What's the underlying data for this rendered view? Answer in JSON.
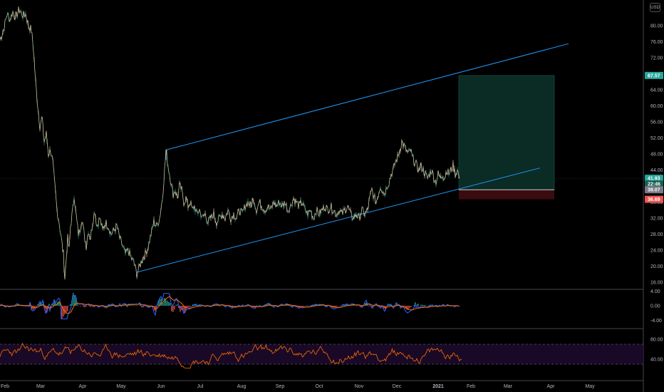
{
  "currency": "USD",
  "price_pane": {
    "y_ticks": [
      "80.00",
      "76.00",
      "72.00",
      "68.00",
      "64.00",
      "60.00",
      "56.00",
      "52.00",
      "48.00",
      "44.00",
      "36.00",
      "32.00",
      "28.00",
      "24.00",
      "20.00",
      "16.00"
    ],
    "y_min": 14,
    "y_max": 84,
    "series": [
      [
        0,
        76.5
      ],
      [
        5,
        79
      ],
      [
        10,
        83
      ],
      [
        14,
        81.5
      ],
      [
        18,
        83.5
      ],
      [
        22,
        82
      ],
      [
        27,
        84
      ],
      [
        32,
        82.5
      ],
      [
        36,
        83
      ],
      [
        40,
        80
      ],
      [
        44,
        79
      ],
      [
        47,
        74
      ],
      [
        50,
        66
      ],
      [
        53,
        60
      ],
      [
        56,
        55
      ],
      [
        59,
        57
      ],
      [
        62,
        51
      ],
      [
        65,
        53
      ],
      [
        68,
        48
      ],
      [
        71,
        49
      ],
      [
        74,
        46
      ],
      [
        77,
        40
      ],
      [
        80,
        34
      ],
      [
        83,
        31
      ],
      [
        86,
        27
      ],
      [
        89,
        23
      ],
      [
        91,
        17
      ],
      [
        93,
        22
      ],
      [
        95,
        27
      ],
      [
        97,
        24
      ],
      [
        99,
        30
      ],
      [
        102,
        34
      ],
      [
        104,
        38
      ],
      [
        106,
        34
      ],
      [
        108,
        31
      ],
      [
        110,
        28
      ],
      [
        112,
        29
      ],
      [
        115,
        32
      ],
      [
        118,
        28
      ],
      [
        121,
        25
      ],
      [
        124,
        29
      ],
      [
        127,
        27
      ],
      [
        130,
        31
      ],
      [
        133,
        34
      ],
      [
        136,
        30
      ],
      [
        140,
        32
      ],
      [
        144,
        29
      ],
      [
        148,
        31
      ],
      [
        152,
        30
      ],
      [
        156,
        28
      ],
      [
        160,
        29
      ],
      [
        164,
        30
      ],
      [
        168,
        27
      ],
      [
        172,
        25
      ],
      [
        176,
        23
      ],
      [
        180,
        24
      ],
      [
        184,
        22
      ],
      [
        188,
        21
      ],
      [
        192,
        18
      ],
      [
        196,
        20
      ],
      [
        200,
        22
      ],
      [
        204,
        23
      ],
      [
        208,
        25
      ],
      [
        212,
        28
      ],
      [
        216,
        31
      ],
      [
        220,
        30
      ],
      [
        224,
        32
      ],
      [
        228,
        37
      ],
      [
        231,
        44
      ],
      [
        233,
        49
      ],
      [
        235,
        46
      ],
      [
        237,
        44
      ],
      [
        239,
        42
      ],
      [
        241,
        40
      ],
      [
        243,
        38
      ],
      [
        246,
        39
      ],
      [
        249,
        37
      ],
      [
        252,
        40
      ],
      [
        255,
        39
      ],
      [
        258,
        36
      ],
      [
        261,
        37
      ],
      [
        264,
        35
      ],
      [
        267,
        36
      ],
      [
        270,
        34
      ],
      [
        273,
        35
      ],
      [
        276,
        33
      ],
      [
        280,
        34
      ],
      [
        284,
        32
      ],
      [
        288,
        33
      ],
      [
        292,
        31
      ],
      [
        296,
        32
      ],
      [
        300,
        33
      ],
      [
        304,
        31
      ],
      [
        308,
        32
      ],
      [
        312,
        33
      ],
      [
        316,
        32
      ],
      [
        320,
        34
      ],
      [
        324,
        32
      ],
      [
        328,
        33
      ],
      [
        332,
        32
      ],
      [
        336,
        34
      ],
      [
        340,
        33
      ],
      [
        344,
        35
      ],
      [
        348,
        36
      ],
      [
        352,
        35
      ],
      [
        356,
        37
      ],
      [
        360,
        34
      ],
      [
        364,
        36
      ],
      [
        368,
        35
      ],
      [
        372,
        34
      ],
      [
        376,
        35
      ],
      [
        380,
        34
      ],
      [
        384,
        36
      ],
      [
        388,
        35
      ],
      [
        392,
        36
      ],
      [
        396,
        35
      ],
      [
        400,
        36
      ],
      [
        404,
        34
      ],
      [
        408,
        35
      ],
      [
        412,
        37
      ],
      [
        416,
        36
      ],
      [
        420,
        35
      ],
      [
        424,
        36
      ],
      [
        428,
        34
      ],
      [
        432,
        33
      ],
      [
        436,
        34
      ],
      [
        440,
        32
      ],
      [
        444,
        34
      ],
      [
        448,
        33
      ],
      [
        452,
        34
      ],
      [
        456,
        35
      ],
      [
        460,
        34
      ],
      [
        464,
        35
      ],
      [
        468,
        34
      ],
      [
        472,
        33
      ],
      [
        476,
        34
      ],
      [
        480,
        33
      ],
      [
        484,
        34
      ],
      [
        488,
        35
      ],
      [
        492,
        33
      ],
      [
        496,
        32
      ],
      [
        500,
        33
      ],
      [
        504,
        32
      ],
      [
        508,
        34
      ],
      [
        512,
        33
      ],
      [
        516,
        34
      ],
      [
        519,
        37
      ],
      [
        522,
        39
      ],
      [
        525,
        37
      ],
      [
        528,
        36
      ],
      [
        531,
        38
      ],
      [
        534,
        40
      ],
      [
        537,
        39
      ],
      [
        540,
        38
      ],
      [
        543,
        40
      ],
      [
        546,
        41
      ],
      [
        549,
        43
      ],
      [
        552,
        44
      ],
      [
        555,
        46
      ],
      [
        558,
        47
      ],
      [
        561,
        49
      ],
      [
        564,
        51
      ],
      [
        567,
        50
      ],
      [
        570,
        49
      ],
      [
        573,
        48
      ],
      [
        576,
        49
      ],
      [
        579,
        47
      ],
      [
        582,
        46
      ],
      [
        585,
        45
      ],
      [
        588,
        44
      ],
      [
        591,
        45
      ],
      [
        594,
        44
      ],
      [
        597,
        43
      ],
      [
        600,
        42
      ],
      [
        603,
        43
      ],
      [
        606,
        44
      ],
      [
        609,
        42
      ],
      [
        612,
        41
      ],
      [
        615,
        43
      ],
      [
        618,
        42
      ],
      [
        621,
        43
      ],
      [
        624,
        42
      ],
      [
        627,
        44
      ],
      [
        630,
        43
      ],
      [
        633,
        44
      ],
      [
        636,
        45
      ],
      [
        639,
        43
      ],
      [
        642,
        44
      ],
      [
        645,
        41.9
      ]
    ]
  },
  "channel": {
    "upper": [
      [
        233,
        49
      ],
      [
        798,
        75.5
      ]
    ],
    "lower": [
      [
        192,
        18.5
      ],
      [
        758,
        44.5
      ]
    ]
  },
  "position": {
    "target_label": "67.57",
    "entry_label": "39.07",
    "stop_label": "36.69",
    "target": 67.57,
    "entry": 39.07,
    "stop": 36.69,
    "x_start": 644,
    "x_end": 778
  },
  "last_price": {
    "label": "41.93",
    "value": 41.93
  },
  "countdown": {
    "label": "22:46",
    "value": 40.5
  },
  "macd_pane": {
    "y_ticks": [
      "4.00",
      "0.00",
      "-4.00"
    ],
    "y_min": -6,
    "y_max": 5
  },
  "rsi_pane": {
    "y_ticks": [
      "80.00",
      "40.00"
    ],
    "y_min": 10,
    "y_max": 95,
    "upper_band": 70,
    "lower band": 30
  },
  "x_axis": {
    "labels": [
      "Feb",
      "Mar",
      "Apr",
      "May",
      "Jun",
      "Jul",
      "Aug",
      "Sep",
      "Oct",
      "Nov",
      "Dec",
      "2021",
      "Feb",
      "Mar",
      "Apr",
      "May"
    ]
  },
  "colors": {
    "background": "#000000",
    "price_line": "#c8c29a",
    "up_candle": "#26a69a",
    "channel": "#2196f3",
    "target_zone": "#0b2b25",
    "stop_zone": "#3a0c10",
    "last_price_badge": "#26a69a",
    "stop_badge": "#ef5350",
    "rsi_line": "#ff6d00",
    "rsi_band": "#1c0a2a",
    "macd_line": "#2962ff",
    "signal_line": "#ff6d00"
  }
}
